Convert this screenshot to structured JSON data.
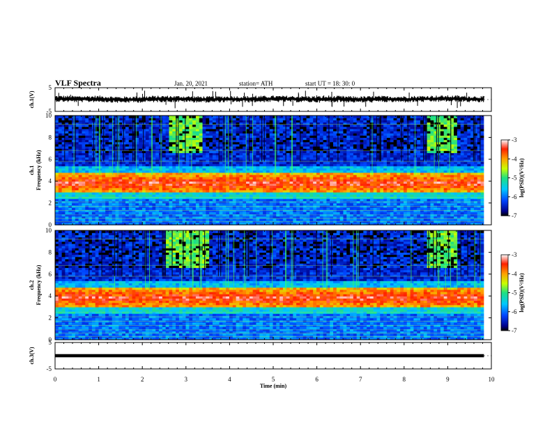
{
  "header": {
    "title": "VLF Spectra",
    "date": "Jan. 20, 2021",
    "station": "station= ATH",
    "start": "start  UT =   18: 30: 0"
  },
  "chart_data": [
    {
      "type": "line",
      "name": "ch1-waveform",
      "ylabel": "ch.1(V)",
      "ylim": [
        -5,
        5
      ],
      "yticks": [
        "5",
        "-5"
      ],
      "x": [
        0,
        0.5,
        1,
        1.5,
        2,
        2.5,
        3,
        3.5,
        4,
        4.5,
        5,
        5.5,
        6,
        6.5,
        7,
        7.5,
        8,
        8.5,
        9,
        9.5,
        9.83
      ],
      "y": [
        0.4,
        0.2,
        0.3,
        -0.1,
        0.1,
        0.3,
        0.2,
        0.0,
        0.2,
        0.1,
        0.3,
        0.2,
        0.1,
        0.2,
        0.0,
        0.2,
        0.1,
        0.3,
        0.4,
        0.2,
        0.1
      ],
      "envelope": [
        1.5,
        -1.6
      ]
    },
    {
      "type": "heatmap",
      "name": "ch1-spectrogram",
      "ylabel_lines": [
        "ch.1",
        "Frequency (kHz)"
      ],
      "ylim": [
        0,
        10
      ],
      "yticks": [
        "0",
        "2",
        "4",
        "6",
        "8",
        "10"
      ],
      "xlim": [
        0,
        10
      ],
      "data_end_min": 9.83,
      "colorbar": {
        "label": "log(PSD)(V²/Hz)",
        "range": [
          -7,
          -3
        ],
        "ticks": [
          "-3",
          "-4",
          "-5",
          "-6",
          "-7"
        ]
      },
      "bands_khz": [
        {
          "from": 3.0,
          "to": 4.8,
          "level": -3.6,
          "note": "intense band centered ~3.8 kHz"
        },
        {
          "from": 4.8,
          "to": 5.5,
          "level": -5.6
        },
        {
          "from": 2.4,
          "to": 3.0,
          "level": -5.4
        },
        {
          "from": 0.0,
          "to": 2.4,
          "level": -6.0
        },
        {
          "from": 5.5,
          "to": 10.0,
          "level": -6.4
        }
      ],
      "bursts_min": [
        [
          2.6,
          3.4
        ],
        [
          8.5,
          9.2
        ]
      ]
    },
    {
      "type": "heatmap",
      "name": "ch2-spectrogram",
      "ylabel_lines": [
        "ch.2",
        "Frequency (kHz)"
      ],
      "ylim": [
        0,
        10
      ],
      "yticks": [
        "0",
        "2",
        "4",
        "6",
        "8",
        "10"
      ],
      "xlim": [
        0,
        10
      ],
      "data_end_min": 9.83,
      "colorbar": {
        "label": "log(PSD)(V²/Hz)",
        "range": [
          -7,
          -3
        ],
        "ticks": [
          "-3",
          "-4",
          "-5",
          "-6",
          "-7"
        ]
      },
      "bands_khz": [
        {
          "from": 3.0,
          "to": 4.8,
          "level": -3.6,
          "note": "intense band centered ~3.8 kHz"
        },
        {
          "from": 4.8,
          "to": 5.5,
          "level": -5.6
        },
        {
          "from": 2.4,
          "to": 3.0,
          "level": -5.4
        },
        {
          "from": 0.0,
          "to": 2.4,
          "level": -6.0
        },
        {
          "from": 5.5,
          "to": 10.0,
          "level": -6.4
        }
      ],
      "bursts_min": [
        [
          2.5,
          3.5
        ],
        [
          8.5,
          9.2
        ]
      ]
    },
    {
      "type": "line",
      "name": "ch3-waveform",
      "ylabel": "ch.3(V)",
      "ylim": [
        -5,
        5
      ],
      "yticks": [
        "5",
        "-5"
      ],
      "x": [
        0,
        9.83
      ],
      "y": [
        0,
        0
      ],
      "note": "flat signal"
    }
  ],
  "xaxis": {
    "label": "Time (min)",
    "ticks": [
      "0",
      "1",
      "2",
      "3",
      "4",
      "5",
      "6",
      "7",
      "8",
      "9",
      "10"
    ],
    "xlim": [
      0,
      10
    ]
  }
}
